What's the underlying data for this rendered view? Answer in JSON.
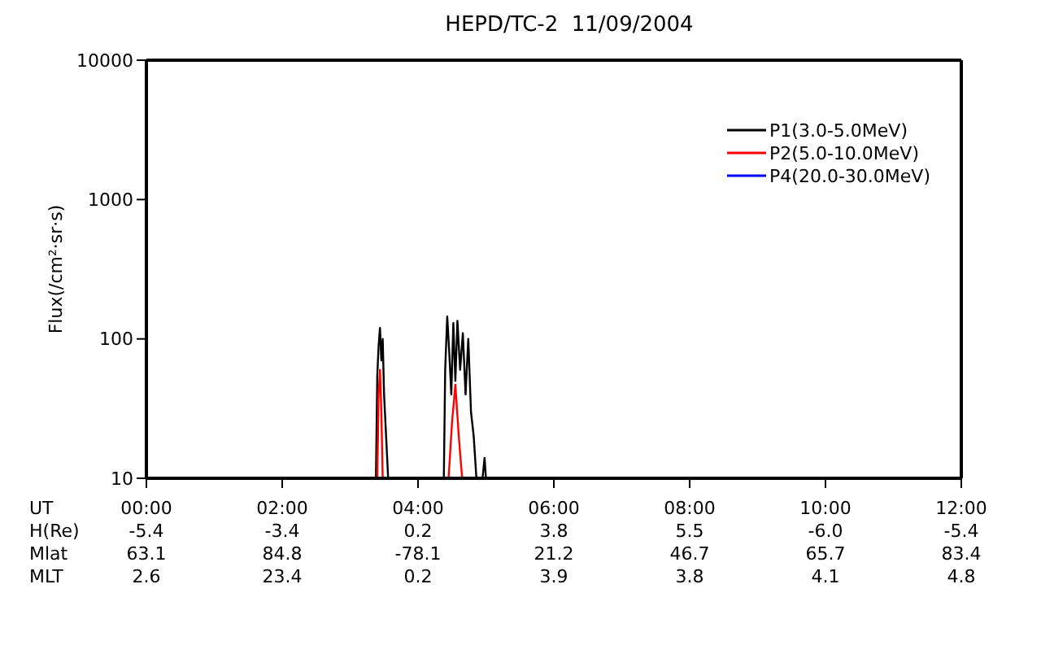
{
  "chart_data": {
    "type": "line",
    "title": "HEPD/TC-2  11/09/2004",
    "ylabel": "Flux(/cm²·sr·s)",
    "xlabel": "UT",
    "annotations": [
      "H(Re)",
      "-5.4",
      "-3.4",
      "0.2",
      "3.8",
      "5.5",
      "-6.0",
      "-5.4",
      "Mlat",
      "63.1",
      "84.8",
      "-78.1",
      "21.2",
      "46.7",
      "65.7",
      "83.4",
      "MLT",
      "2.6",
      "23.4",
      "0.2",
      "3.9",
      "3.8",
      "4.1",
      "4.8"
    ],
    "xlim": [
      0,
      12
    ],
    "xticks": [
      {
        "value": 0,
        "label": "00:00"
      },
      {
        "value": 2,
        "label": "02:00"
      },
      {
        "value": 4,
        "label": "04:00"
      },
      {
        "value": 6,
        "label": "06:00"
      },
      {
        "value": 8,
        "label": "08:00"
      },
      {
        "value": 10,
        "label": "10:00"
      },
      {
        "value": 12,
        "label": "12:00"
      }
    ],
    "ylim": [
      10,
      10000
    ],
    "yticks": [
      10,
      100,
      1000,
      10000
    ],
    "log": "y",
    "legend": "top right",
    "line_style": "solid",
    "marker": "none",
    "series": [
      {
        "name": "P1(3.0-5.0MeV)",
        "color": "#000000",
        "x": [
          3.38,
          3.4,
          3.42,
          3.44,
          3.46,
          3.48,
          3.5,
          3.53,
          3.56,
          4.0,
          4.38,
          4.4,
          4.43,
          4.46,
          4.49,
          4.52,
          4.55,
          4.58,
          4.62,
          4.66,
          4.7,
          4.74,
          4.78,
          4.82,
          4.86,
          4.9,
          4.95,
          4.98,
          5.0
        ],
        "values": [
          10,
          55,
          90,
          120,
          70,
          100,
          40,
          20,
          10,
          null,
          10,
          60,
          145,
          80,
          40,
          130,
          50,
          135,
          60,
          110,
          40,
          100,
          30,
          20,
          10,
          null,
          10,
          14,
          10
        ]
      },
      {
        "name": "P2(5.0-10.0MeV)",
        "color": "#ff0000",
        "x": [
          3.4,
          3.42,
          3.44,
          3.46,
          3.48,
          4.0,
          4.45,
          4.5,
          4.55,
          4.6,
          4.65
        ],
        "values": [
          10,
          40,
          60,
          30,
          10,
          null,
          10,
          25,
          47,
          20,
          10
        ]
      },
      {
        "name": "P4(20.0-30.0MeV)",
        "color": "#0000ff"
      }
    ]
  }
}
